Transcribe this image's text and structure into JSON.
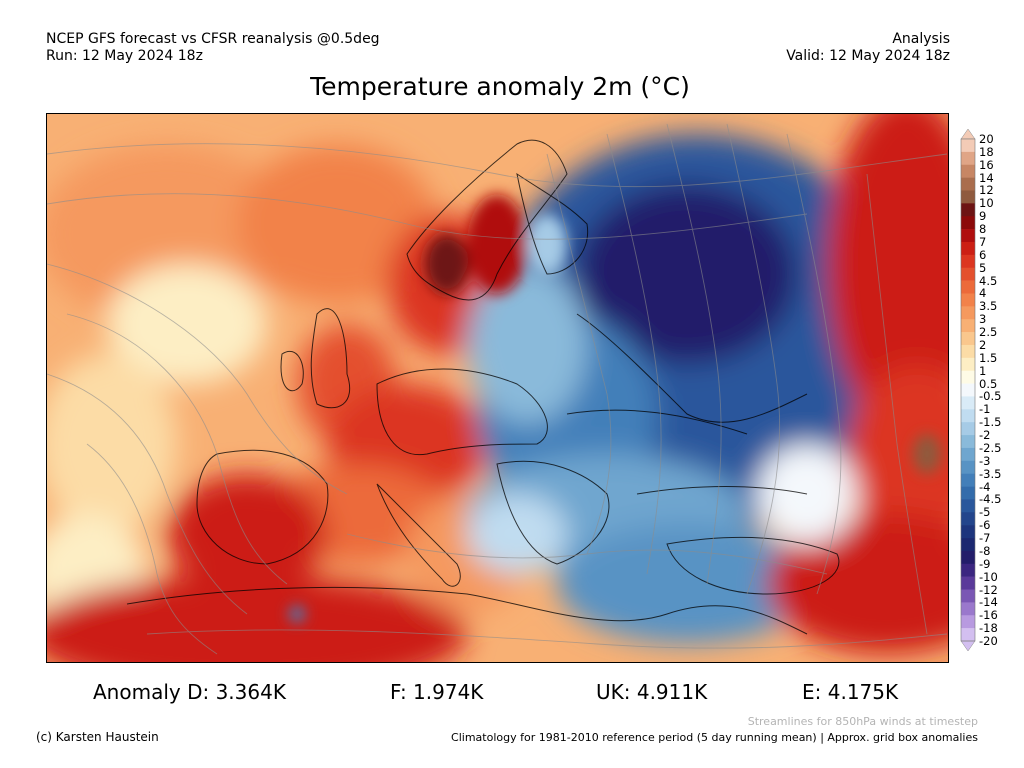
{
  "header": {
    "left_line1": "NCEP GFS forecast vs CFSR reanalysis @0.5deg",
    "left_line2": "Run: 12 May 2024 18z",
    "right_line1": "Analysis",
    "right_line2": "Valid: 12 May 2024 18z"
  },
  "title": "Temperature anomaly 2m (°C)",
  "colorbar": {
    "labels": [
      "20",
      "18",
      "16",
      "14",
      "12",
      "10",
      "9",
      "8",
      "7",
      "6",
      "5",
      "4.5",
      "4",
      "3.5",
      "3",
      "2.5",
      "2",
      "1.5",
      "1",
      "0.5",
      "-0.5",
      "-1",
      "-1.5",
      "-2",
      "-2.5",
      "-3",
      "-3.5",
      "-4",
      "-4.5",
      "-5",
      "-6",
      "-7",
      "-8",
      "-9",
      "-10",
      "-12",
      "-14",
      "-16",
      "-18",
      "-20"
    ],
    "colors": [
      "#f3cbb6",
      "#e0a586",
      "#c78664",
      "#aa6d4d",
      "#8f5a3e",
      "#6d1414",
      "#8c0a0a",
      "#b00e0e",
      "#cc1f14",
      "#dc3620",
      "#e4502d",
      "#ec6a3a",
      "#f2824a",
      "#f5995e",
      "#f8b074",
      "#fac78d",
      "#fcdca6",
      "#fdeec4",
      "#fefbe6",
      "#f4f8fc",
      "#d9ebf7",
      "#c0dcf0",
      "#a6cbe6",
      "#8abada",
      "#6fa6cf",
      "#5893c4",
      "#437fb9",
      "#336cab",
      "#2a579c",
      "#23458c",
      "#1d357d",
      "#1b2870",
      "#231d6a",
      "#3b2680",
      "#5a3a9a",
      "#7a57b4",
      "#9a78cc",
      "#b89ae0",
      "#d3bff0"
    ]
  },
  "stats": {
    "anomaly_d": "Anomaly D: 3.364K",
    "f": "F: 1.974K",
    "uk": "UK: 4.911K",
    "e": "E: 4.175K"
  },
  "footer": {
    "credit": "(c) Karsten Haustein",
    "streamlines_note": "Streamlines for 850hPa winds at timestep",
    "climatology_note": "Climatology for 1981-2010 reference period (5 day running mean) | Approx. grid box anomalies"
  }
}
